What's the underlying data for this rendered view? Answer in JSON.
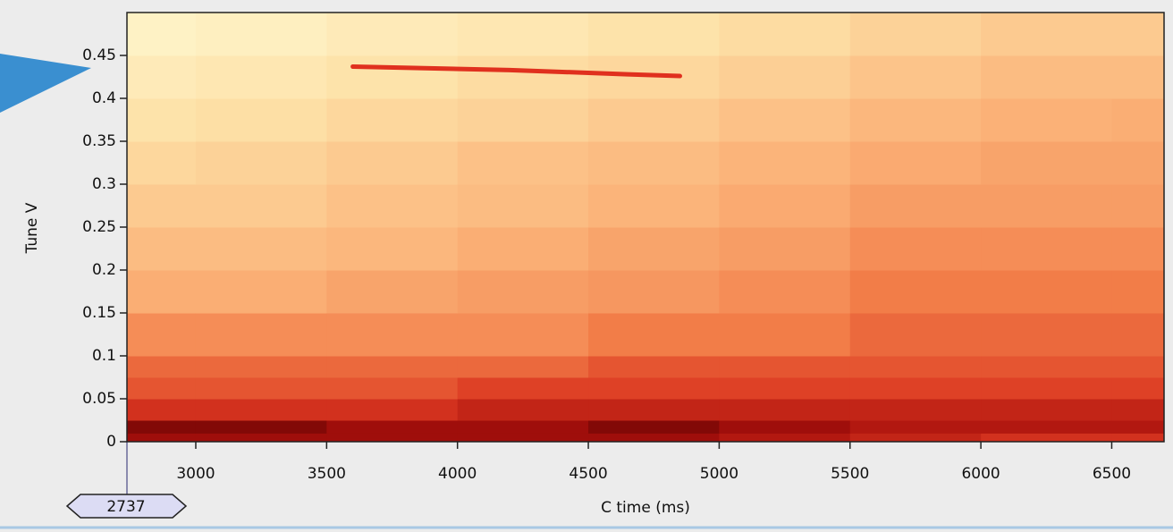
{
  "chart_data": {
    "type": "heatmap",
    "xlabel": "C time (ms)",
    "ylabel": "Tune V",
    "xlim": [
      2737,
      6700
    ],
    "ylim": [
      0,
      0.5
    ],
    "xticks": [
      3000,
      3500,
      4000,
      4500,
      5000,
      5500,
      6000,
      6500
    ],
    "yticks": [
      0,
      0.05,
      0.1,
      0.15,
      0.2,
      0.25,
      0.3,
      0.35,
      0.4,
      0.45
    ],
    "x_cursor": 2737,
    "colormap": [
      "#fffad2",
      "#fde0a6",
      "#fbb379",
      "#f27d48",
      "#dc3a22",
      "#a80f0c",
      "#4a0000"
    ],
    "x_bins": [
      2737,
      3000,
      3500,
      4000,
      4500,
      5000,
      5500,
      6000,
      6500,
      6700
    ],
    "y_bins": [
      0,
      0.01,
      0.025,
      0.05,
      0.075,
      0.1,
      0.15,
      0.2,
      0.25,
      0.3,
      0.35,
      0.4,
      0.45,
      0.5
    ],
    "z": [
      [
        0.85,
        0.85,
        0.85,
        0.85,
        0.85,
        0.8,
        0.75,
        0.7,
        0.7
      ],
      [
        0.9,
        0.9,
        0.85,
        0.85,
        0.9,
        0.85,
        0.8,
        0.8,
        0.8
      ],
      [
        0.7,
        0.7,
        0.7,
        0.75,
        0.75,
        0.75,
        0.75,
        0.75,
        0.75
      ],
      [
        0.6,
        0.6,
        0.6,
        0.65,
        0.65,
        0.65,
        0.65,
        0.65,
        0.65
      ],
      [
        0.55,
        0.55,
        0.55,
        0.55,
        0.6,
        0.6,
        0.6,
        0.6,
        0.6
      ],
      [
        0.45,
        0.45,
        0.45,
        0.45,
        0.5,
        0.5,
        0.55,
        0.55,
        0.55
      ],
      [
        0.35,
        0.35,
        0.38,
        0.4,
        0.42,
        0.45,
        0.5,
        0.5,
        0.5
      ],
      [
        0.3,
        0.3,
        0.32,
        0.35,
        0.38,
        0.4,
        0.45,
        0.45,
        0.45
      ],
      [
        0.25,
        0.25,
        0.28,
        0.3,
        0.33,
        0.36,
        0.4,
        0.4,
        0.4
      ],
      [
        0.2,
        0.22,
        0.25,
        0.28,
        0.3,
        0.33,
        0.36,
        0.38,
        0.38
      ],
      [
        0.15,
        0.17,
        0.2,
        0.22,
        0.25,
        0.28,
        0.32,
        0.34,
        0.35
      ],
      [
        0.1,
        0.12,
        0.15,
        0.18,
        0.2,
        0.23,
        0.27,
        0.3,
        0.3
      ],
      [
        0.05,
        0.07,
        0.1,
        0.12,
        0.15,
        0.18,
        0.22,
        0.25,
        0.25
      ]
    ],
    "line": {
      "color": "#e0301e",
      "x": [
        3600,
        4200,
        4650,
        4850
      ],
      "y": [
        0.437,
        0.433,
        0.428,
        0.426
      ]
    }
  }
}
